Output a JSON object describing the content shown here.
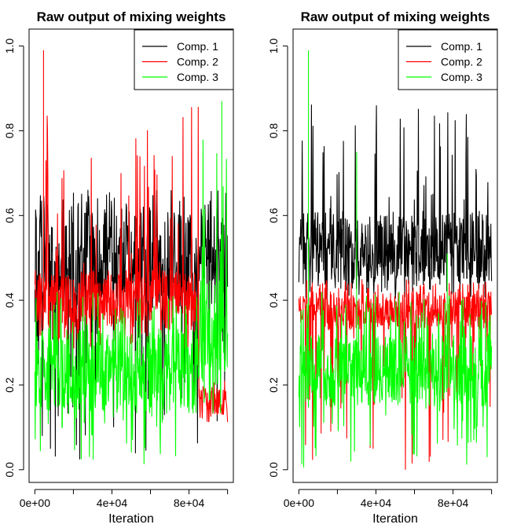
{
  "figure": {
    "colors": {
      "comp1": "#000000",
      "comp2": "#ff0000",
      "comp3": "#00ff00",
      "frame": "#000000",
      "background": "#ffffff"
    }
  },
  "chart_data": [
    {
      "type": "line",
      "title": "Raw output of mixing weights",
      "xlabel": "Iteration",
      "ylabel": "",
      "xlim": [
        -3000,
        103000
      ],
      "ylim": [
        -0.03,
        1.04
      ],
      "x_ticks": [
        0,
        20000,
        40000,
        60000,
        80000,
        100000
      ],
      "x_tick_labels": [
        "0e+00",
        "",
        "4e+04",
        "",
        "8e+04",
        ""
      ],
      "y_ticks": [
        0,
        0.2,
        0.4,
        0.6,
        0.8,
        1.0
      ],
      "y_tick_labels": [
        "0.0",
        "0.2",
        "0.4",
        "0.6",
        "0.8",
        "1.0"
      ],
      "legend": {
        "position": "top-right",
        "entries": [
          "Comp. 1",
          "Comp. 2",
          "Comp. 3"
        ]
      },
      "x_range": [
        0,
        100000
      ],
      "series": [
        {
          "name": "Comp. 1",
          "color": "#000000",
          "regimes": [
            {
              "x_from": 0,
              "x_to": 100000,
              "band_low": 0.38,
              "band_high": 0.62,
              "min": 0.0,
              "max": 0.66
            }
          ],
          "spikes": []
        },
        {
          "name": "Comp. 2",
          "color": "#ff0000",
          "regimes": [
            {
              "x_from": 0,
              "x_to": 85000,
              "band_low": 0.33,
              "band_high": 0.47,
              "min": 0.28,
              "max": 0.86
            },
            {
              "x_from": 85000,
              "x_to": 100000,
              "band_low": 0.13,
              "band_high": 0.19,
              "min": 0.11,
              "max": 0.21
            }
          ],
          "spikes": [
            {
              "x": 4500,
              "y": 0.99
            }
          ]
        },
        {
          "name": "Comp. 3",
          "color": "#00ff00",
          "regimes": [
            {
              "x_from": 0,
              "x_to": 85000,
              "band_low": 0.13,
              "band_high": 0.33,
              "min": 0.0,
              "max": 0.42
            },
            {
              "x_from": 85000,
              "x_to": 100000,
              "band_low": 0.2,
              "band_high": 0.45,
              "min": 0.12,
              "max": 0.83
            }
          ],
          "spikes": [
            {
              "x": 97000,
              "y": 0.87
            }
          ]
        }
      ]
    },
    {
      "type": "line",
      "title": "Raw output of mixing weights",
      "xlabel": "Iteration",
      "ylabel": "",
      "xlim": [
        -3000,
        103000
      ],
      "ylim": [
        -0.03,
        1.04
      ],
      "x_ticks": [
        0,
        20000,
        40000,
        60000,
        80000,
        100000
      ],
      "x_tick_labels": [
        "0e+00",
        "",
        "4e+04",
        "",
        "8e+04",
        ""
      ],
      "y_ticks": [
        0,
        0.2,
        0.4,
        0.6,
        0.8,
        1.0
      ],
      "y_tick_labels": [
        "0.0",
        "0.2",
        "0.4",
        "0.6",
        "0.8",
        "1.0"
      ],
      "legend": {
        "position": "top-right",
        "entries": [
          "Comp. 1",
          "Comp. 2",
          "Comp. 3"
        ]
      },
      "x_range": [
        0,
        100000
      ],
      "series": [
        {
          "name": "Comp. 1",
          "color": "#000000",
          "regimes": [
            {
              "x_from": 0,
              "x_to": 100000,
              "band_low": 0.44,
              "band_high": 0.61,
              "min": 0.4,
              "max": 0.87
            }
          ],
          "spikes": []
        },
        {
          "name": "Comp. 2",
          "color": "#ff0000",
          "regimes": [
            {
              "x_from": 0,
              "x_to": 100000,
              "band_low": 0.33,
              "band_high": 0.42,
              "min": 0.0,
              "max": 0.45
            }
          ],
          "spikes": []
        },
        {
          "name": "Comp. 3",
          "color": "#00ff00",
          "regimes": [
            {
              "x_from": 0,
              "x_to": 100000,
              "band_low": 0.15,
              "band_high": 0.32,
              "min": 0.0,
              "max": 0.42
            }
          ],
          "spikes": [
            {
              "x": 5000,
              "y": 0.99
            },
            {
              "x": 30000,
              "y": 0.75
            },
            {
              "x": 77000,
              "y": 0.51
            }
          ]
        }
      ]
    }
  ]
}
